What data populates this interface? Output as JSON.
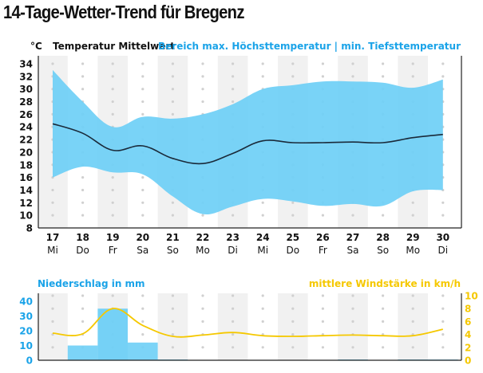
{
  "title": "14-Tage-Wetter-Trend für Bregenz",
  "chart_data": [
    {
      "type": "area",
      "title": "14-Tage-Wetter-Trend für Bregenz",
      "ylabel": "°C",
      "legend_left": "Temperatur Mittelwert",
      "legend_right": "Bereich max. Höchsttemperatur | min. Tiefsttemperatur",
      "ylim": [
        8,
        34
      ],
      "yticks": [
        8,
        10,
        12,
        14,
        16,
        18,
        20,
        22,
        24,
        26,
        28,
        30,
        32,
        34
      ],
      "categories": [
        "17",
        "18",
        "19",
        "20",
        "21",
        "22",
        "23",
        "24",
        "25",
        "26",
        "27",
        "28",
        "29",
        "30"
      ],
      "weekdays": [
        "Mi",
        "Do",
        "Fr",
        "Sa",
        "So",
        "Mo",
        "Di",
        "Mi",
        "Do",
        "Fr",
        "Sa",
        "So",
        "Mo",
        "Di"
      ],
      "series": [
        {
          "name": "max. Höchsttemperatur",
          "values": [
            33,
            28,
            24,
            25.6,
            25.3,
            26,
            27.6,
            30,
            30.6,
            31.2,
            31.2,
            31,
            30.2,
            31.5
          ]
        },
        {
          "name": "Temperatur Mittelwert",
          "values": [
            24.5,
            23,
            20.3,
            21,
            19,
            18.2,
            19.8,
            21.8,
            21.5,
            21.5,
            21.6,
            21.5,
            22.3,
            22.8
          ]
        },
        {
          "name": "min. Tiefsttemperatur",
          "values": [
            16,
            17.7,
            16.8,
            16.5,
            13,
            10.2,
            11.4,
            12.6,
            12.2,
            11.5,
            11.8,
            11.5,
            13.8,
            14
          ]
        }
      ],
      "colors": {
        "range": "#6ecff6",
        "mean": "#1a2a3a"
      }
    },
    {
      "type": "bar",
      "title_left": "Niederschlag in mm",
      "title_right": "mittlere Windstärke in km/h",
      "categories": [
        "17",
        "18",
        "19",
        "20",
        "21",
        "22",
        "23",
        "24",
        "25",
        "26",
        "27",
        "28",
        "29",
        "30"
      ],
      "ylim_left": [
        0,
        40
      ],
      "yticks_left": [
        0,
        10,
        20,
        30,
        40
      ],
      "ylim_right": [
        0,
        10
      ],
      "yticks_right": [
        0,
        2,
        4,
        6,
        8,
        10
      ],
      "series": [
        {
          "name": "Niederschlag in mm",
          "type": "bar",
          "values": [
            0,
            10,
            35,
            12,
            0.5,
            0,
            0,
            0,
            0,
            0,
            0.5,
            0,
            0.5,
            0.5
          ]
        },
        {
          "name": "mittlere Windstärke in km/h",
          "type": "line",
          "values": [
            4.2,
            4.1,
            8,
            5.4,
            3.7,
            3.9,
            4.3,
            3.8,
            3.7,
            3.8,
            3.9,
            3.8,
            3.8,
            4.8
          ]
        }
      ],
      "colors": {
        "precip": "#6ecff6",
        "precip_label": "#1aa3e8",
        "wind": "#f5c800"
      }
    }
  ]
}
